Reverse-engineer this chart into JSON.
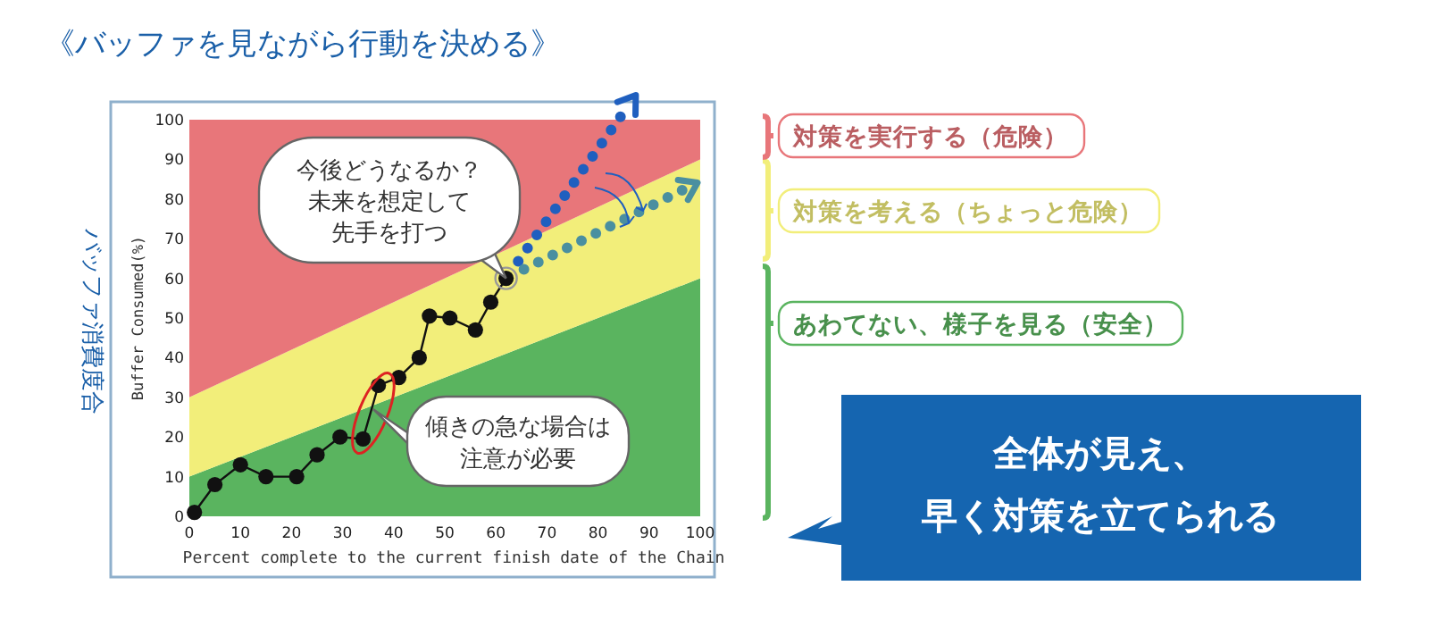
{
  "chart_data": {
    "type": "line",
    "title": "《バッファを見ながら行動を決める》",
    "xlabel": "Percent complete to the current finish date of the Chain",
    "ylabel": "Buffer Consumed(%)",
    "xlim": [
      0,
      100
    ],
    "ylim": [
      0,
      100
    ],
    "xticks": [
      0,
      10,
      20,
      30,
      40,
      50,
      60,
      70,
      80,
      90,
      100
    ],
    "yticks": [
      0,
      10,
      20,
      30,
      40,
      50,
      60,
      70,
      80,
      90,
      100
    ],
    "grid": false,
    "legend": "right",
    "stacked": true,
    "series": [
      {
        "name": "あわてない、様子を見る（安全）",
        "type": "area",
        "color": "#5ab45f",
        "x": [
          0,
          100
        ],
        "values": [
          10,
          60
        ]
      },
      {
        "name": "対策を考える（ちょっと危険）",
        "type": "area",
        "color": "#f2ee7a",
        "x": [
          0,
          100
        ],
        "values": [
          20,
          30
        ]
      },
      {
        "name": "対策を実行する（危険）",
        "type": "area",
        "color": "#e8767a",
        "x": [
          0,
          100
        ],
        "values": [
          70,
          10
        ]
      },
      {
        "color": "#111111",
        "marker": "circle",
        "line_style": "solid",
        "x": [
          1,
          5,
          10,
          15,
          21,
          25,
          29.5,
          34,
          37,
          41,
          45,
          47,
          51,
          56,
          59,
          62
        ],
        "values": [
          1,
          8,
          13,
          10,
          10,
          15.5,
          20,
          19.5,
          33,
          35,
          40,
          50.5,
          50,
          47,
          54,
          60
        ]
      }
    ],
    "annotations": [
      "バッファ消費度合",
      {
        "text": "今後どうなるか？未来を想定して先手を打つ",
        "x": 62,
        "y": 60
      },
      {
        "text": "傾きの急な場合は注意が必要",
        "x": 36,
        "y": 27
      },
      "全体が見え、早く対策を立てられる"
    ]
  }
}
